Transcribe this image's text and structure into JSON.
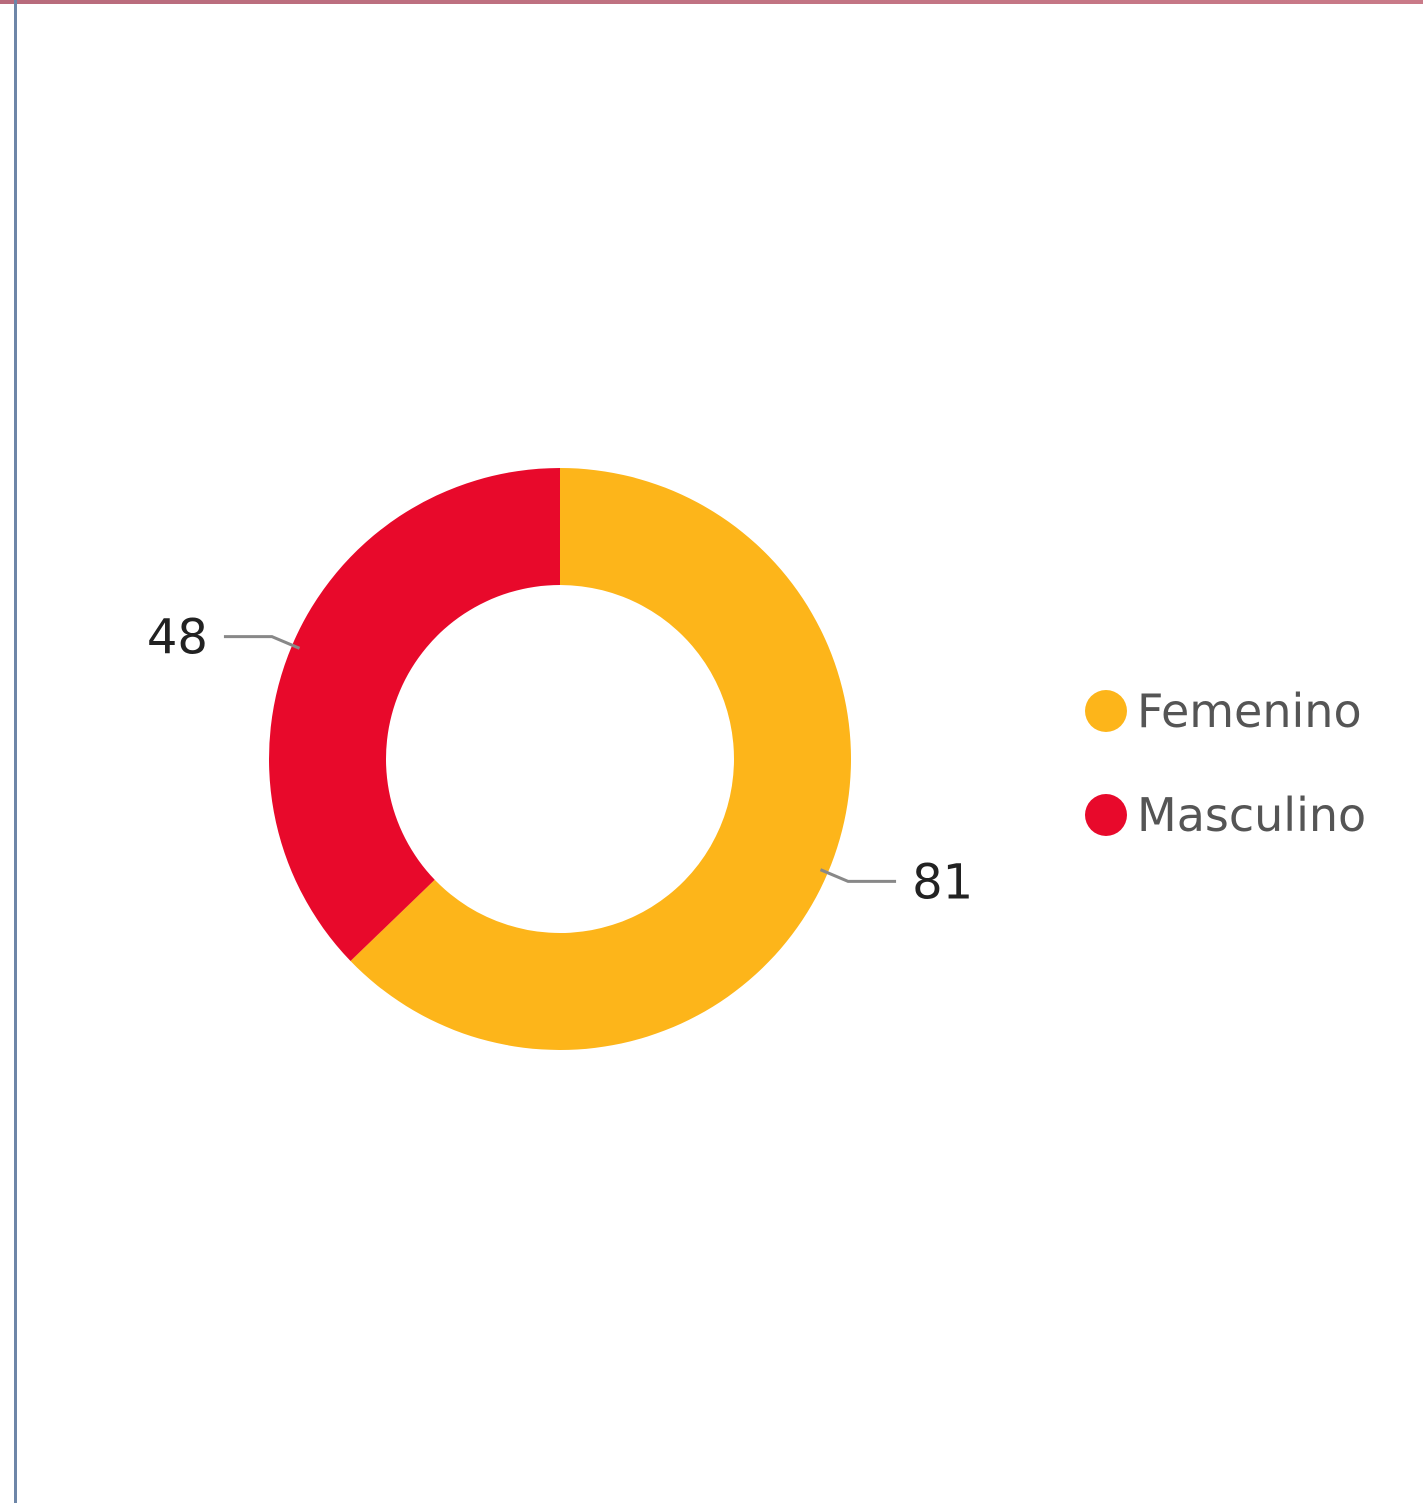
{
  "chart_data": {
    "type": "pie",
    "variant": "donut",
    "categories": [
      "Femenino",
      "Masculino"
    ],
    "values": [
      81,
      48
    ],
    "colors": [
      "#FDB51A",
      "#E8092B"
    ],
    "data_labels": [
      "81",
      "48"
    ],
    "legend": {
      "placement": "right",
      "entries": [
        "Femenino",
        "Masculino"
      ]
    }
  },
  "frame_colors": {
    "top_border": "#C97A88",
    "left_border": "#6E86A8"
  }
}
